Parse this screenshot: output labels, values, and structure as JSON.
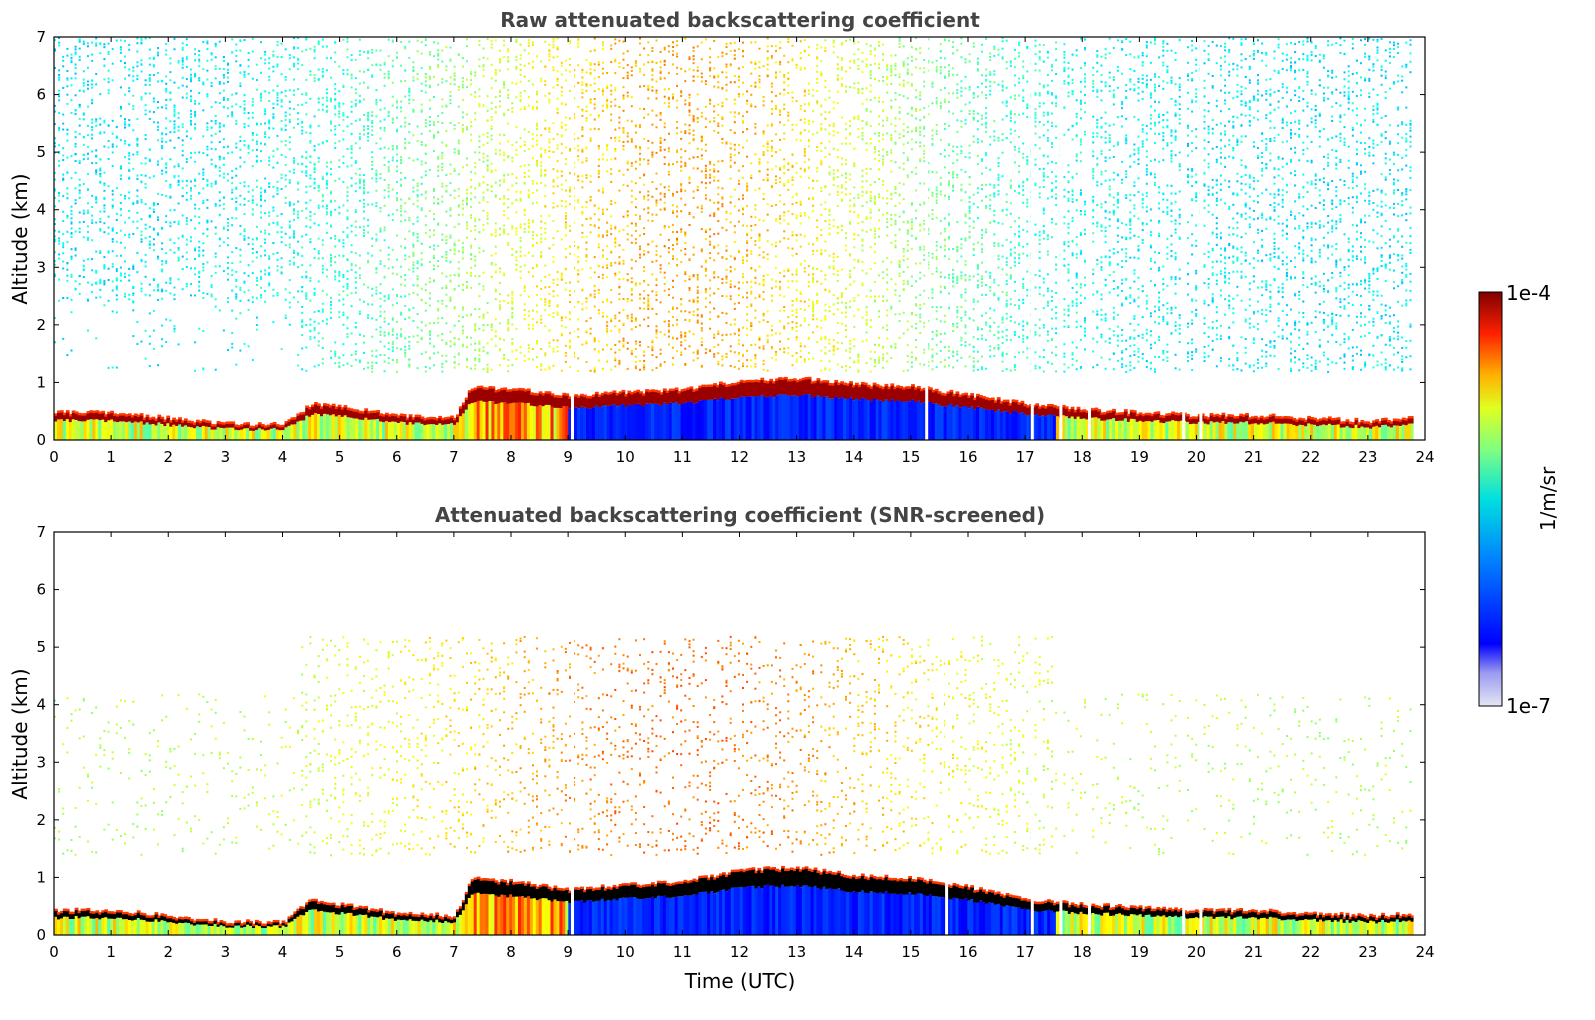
{
  "chart_data": [
    {
      "type": "heatmap",
      "title": "Raw attenuated backscattering coefficient",
      "xlabel": "",
      "ylabel": "Altitude (km)",
      "xlim": [
        0,
        24
      ],
      "ylim": [
        0,
        7
      ],
      "xticks": [
        "0",
        "1",
        "2",
        "3",
        "4",
        "5",
        "6",
        "7",
        "8",
        "9",
        "10",
        "11",
        "12",
        "13",
        "14",
        "15",
        "16",
        "17",
        "18",
        "19",
        "20",
        "21",
        "22",
        "23",
        "24"
      ],
      "yticks": [
        "0",
        "1",
        "2",
        "3",
        "4",
        "5",
        "6",
        "7"
      ],
      "boundary_layer_top_km": [
        [
          0,
          0.45
        ],
        [
          1,
          0.45
        ],
        [
          2,
          0.35
        ],
        [
          3,
          0.25
        ],
        [
          4,
          0.25
        ],
        [
          4.5,
          0.6
        ],
        [
          5,
          0.55
        ],
        [
          6,
          0.4
        ],
        [
          7,
          0.35
        ],
        [
          7.3,
          0.9
        ],
        [
          8,
          0.85
        ],
        [
          9,
          0.75
        ],
        [
          10,
          0.8
        ],
        [
          11,
          0.85
        ],
        [
          12,
          1.0
        ],
        [
          13,
          1.05
        ],
        [
          14,
          0.95
        ],
        [
          15,
          0.9
        ],
        [
          16,
          0.75
        ],
        [
          17,
          0.6
        ],
        [
          18,
          0.5
        ],
        [
          19,
          0.45
        ],
        [
          20,
          0.4
        ],
        [
          21,
          0.4
        ],
        [
          22,
          0.35
        ],
        [
          23,
          0.3
        ],
        [
          23.8,
          0.35
        ]
      ],
      "data_gaps_utc": [
        9.05,
        15.25,
        17.1,
        17.6,
        18.1,
        19.75,
        20.05
      ],
      "data_end_utc": 23.8
    },
    {
      "type": "heatmap",
      "title": "Attenuated backscattering coefficient (SNR-screened)",
      "xlabel": "Time (UTC)",
      "ylabel": "Altitude (km)",
      "xlim": [
        0,
        24
      ],
      "ylim": [
        0,
        7
      ],
      "xticks": [
        "0",
        "1",
        "2",
        "3",
        "4",
        "5",
        "6",
        "7",
        "8",
        "9",
        "10",
        "11",
        "12",
        "13",
        "14",
        "15",
        "16",
        "17",
        "18",
        "19",
        "20",
        "21",
        "22",
        "23",
        "24"
      ],
      "yticks": [
        "0",
        "1",
        "2",
        "3",
        "4",
        "5",
        "6",
        "7"
      ],
      "boundary_layer_top_km": [
        [
          0,
          0.4
        ],
        [
          1,
          0.4
        ],
        [
          2,
          0.3
        ],
        [
          3,
          0.2
        ],
        [
          4,
          0.2
        ],
        [
          4.5,
          0.6
        ],
        [
          5,
          0.5
        ],
        [
          6,
          0.35
        ],
        [
          7,
          0.3
        ],
        [
          7.3,
          0.95
        ],
        [
          8,
          0.9
        ],
        [
          9,
          0.75
        ],
        [
          10,
          0.85
        ],
        [
          11,
          0.9
        ],
        [
          12,
          1.1
        ],
        [
          13,
          1.15
        ],
        [
          14,
          1.0
        ],
        [
          15,
          0.95
        ],
        [
          16,
          0.8
        ],
        [
          17,
          0.6
        ],
        [
          18,
          0.5
        ],
        [
          19,
          0.45
        ],
        [
          20,
          0.4
        ],
        [
          21,
          0.4
        ],
        [
          22,
          0.35
        ],
        [
          23,
          0.3
        ],
        [
          23.8,
          0.35
        ]
      ],
      "data_gaps_utc": [
        9.05,
        15.6,
        17.1,
        17.6,
        18.1,
        19.75,
        20.05
      ],
      "data_end_utc": 23.8
    }
  ],
  "colorbar": {
    "label": "1/m/sr",
    "max_label": "1e-4",
    "min_label": "1e-7",
    "scale": "log",
    "range": [
      1e-07,
      0.0001
    ],
    "colormap": "jet"
  }
}
